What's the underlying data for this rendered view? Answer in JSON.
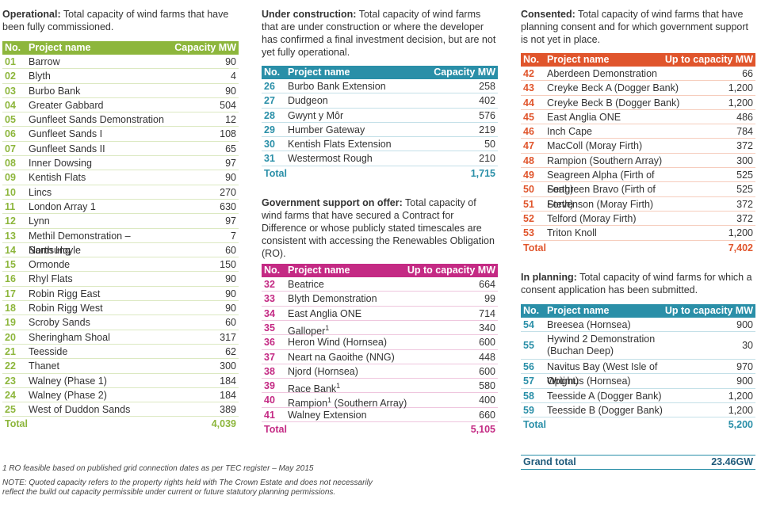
{
  "sections": {
    "operational": {
      "label": "Operational:",
      "description": "Total capacity of wind farms that have been fully commissioned.",
      "columns": [
        "No.",
        "Project name",
        "Capacity MW"
      ],
      "rows": [
        [
          "01",
          "Barrow",
          "90"
        ],
        [
          "02",
          "Blyth",
          "4"
        ],
        [
          "03",
          "Burbo Bank",
          "90"
        ],
        [
          "04",
          "Greater Gabbard",
          "504"
        ],
        [
          "05",
          "Gunfleet Sands Demonstration",
          "12"
        ],
        [
          "06",
          "Gunfleet Sands I",
          "108"
        ],
        [
          "07",
          "Gunfleet Sands II",
          "65"
        ],
        [
          "08",
          "Inner Dowsing",
          "97"
        ],
        [
          "09",
          "Kentish Flats",
          "90"
        ],
        [
          "10",
          "Lincs",
          "270"
        ],
        [
          "11",
          "London Array 1",
          "630"
        ],
        [
          "12",
          "Lynn",
          "97"
        ],
        [
          "13",
          "Methil Demonstration – Samsung",
          "7"
        ],
        [
          "14",
          "North Hoyle",
          "60"
        ],
        [
          "15",
          "Ormonde",
          "150"
        ],
        [
          "16",
          "Rhyl Flats",
          "90"
        ],
        [
          "17",
          "Robin Rigg East",
          "90"
        ],
        [
          "18",
          "Robin Rigg West",
          "90"
        ],
        [
          "19",
          "Scroby Sands",
          "60"
        ],
        [
          "20",
          "Sheringham Shoal",
          "317"
        ],
        [
          "21",
          "Teesside",
          "62"
        ],
        [
          "22",
          "Thanet",
          "300"
        ],
        [
          "23",
          "Walney (Phase 1)",
          "184"
        ],
        [
          "24",
          "Walney (Phase 2)",
          "184"
        ],
        [
          "25",
          "West of Duddon Sands",
          "389"
        ]
      ],
      "total": {
        "label": "Total",
        "value": "4,039"
      }
    },
    "under_construction": {
      "label": "Under construction:",
      "description": "Total capacity of wind farms that are under construction or where the developer has confirmed a final investment decision, but are not yet fully operational.",
      "columns": [
        "No.",
        "Project name",
        "Capacity MW"
      ],
      "rows": [
        [
          "26",
          "Burbo Bank Extension",
          "258"
        ],
        [
          "27",
          "Dudgeon",
          "402"
        ],
        [
          "28",
          "Gwynt y Môr",
          "576"
        ],
        [
          "29",
          "Humber Gateway",
          "219"
        ],
        [
          "30",
          "Kentish Flats Extension",
          "50"
        ],
        [
          "31",
          "Westermost Rough",
          "210"
        ]
      ],
      "total": {
        "label": "Total",
        "value": "1,715"
      }
    },
    "government_support": {
      "label": "Government support on offer:",
      "description": "Total capacity of wind farms that have secured a Contract for Difference or whose publicly stated timescales are consistent with accessing the Renewables Obligation (RO).",
      "columns": [
        "No.",
        "Project name",
        "Up to capacity MW"
      ],
      "rows": [
        [
          "32",
          "Beatrice",
          "664"
        ],
        [
          "33",
          "Blyth Demonstration",
          "99"
        ],
        [
          "34",
          "East Anglia ONE",
          "714"
        ],
        [
          "35",
          "Galloper",
          "340",
          "1",
          ""
        ],
        [
          "36",
          "Heron Wind (Hornsea)",
          "600"
        ],
        [
          "37",
          "Neart na Gaoithe (NNG)",
          "448"
        ],
        [
          "38",
          "Njord (Hornsea)",
          "600"
        ],
        [
          "39",
          "Race Bank",
          "580",
          "1",
          ""
        ],
        [
          "40",
          "Rampion",
          "400",
          "1",
          " (Southern Array)"
        ],
        [
          "41",
          "Walney Extension",
          "660"
        ]
      ],
      "total": {
        "label": "Total",
        "value": "5,105"
      }
    },
    "consented": {
      "label": "Consented:",
      "description": "Total capacity of wind farms that have planning consent and for which government support is not yet in place.",
      "columns": [
        "No.",
        "Project name",
        "Up to capacity MW"
      ],
      "rows": [
        [
          "42",
          "Aberdeen Demonstration",
          "66"
        ],
        [
          "43",
          "Creyke Beck A (Dogger Bank)",
          "1,200"
        ],
        [
          "44",
          "Creyke Beck B (Dogger Bank)",
          "1,200"
        ],
        [
          "45",
          "East Anglia ONE",
          "486"
        ],
        [
          "46",
          "Inch Cape",
          "784"
        ],
        [
          "47",
          "MacColl (Moray Firth)",
          "372"
        ],
        [
          "48",
          "Rampion (Southern Array)",
          "300"
        ],
        [
          "49",
          "Seagreen Alpha (Firth of Forth)",
          "525"
        ],
        [
          "50",
          "Seagreen Bravo (Firth of Forth)",
          "525"
        ],
        [
          "51",
          "Stevenson (Moray Firth)",
          "372"
        ],
        [
          "52",
          "Telford (Moray Firth)",
          "372"
        ],
        [
          "53",
          "Triton Knoll",
          "1,200"
        ]
      ],
      "total": {
        "label": "Total",
        "value": "7,402"
      }
    },
    "in_planning": {
      "label": "In planning:",
      "description": "Total capacity of wind farms for which a consent application has been submitted.",
      "columns": [
        "No.",
        "Project name",
        "Up to capacity MW"
      ],
      "rows": [
        [
          "54",
          "Breesea (Hornsea)",
          "900"
        ],
        [
          "55",
          "Hywind 2 Demonstration (Buchan Deep)",
          "30"
        ],
        [
          "56",
          "Navitus Bay (West Isle of Wright)",
          "970"
        ],
        [
          "57",
          "Optimus (Hornsea)",
          "900"
        ],
        [
          "58",
          "Teesside A (Dogger Bank)",
          "1,200"
        ],
        [
          "59",
          "Teesside B (Dogger Bank)",
          "1,200"
        ]
      ],
      "total": {
        "label": "Total",
        "value": "5,200"
      }
    }
  },
  "grand_total": {
    "label": "Grand total",
    "value": "23.46GW"
  },
  "footnotes": {
    "footnote": "1  RO feasible based on published grid connection dates as per TEC register – May 2015",
    "note": "NOTE: Quoted capacity refers to the property rights held with The Crown Estate and does not necessarily reflect the build out capacity permissible under current or future statutory planning permissions."
  }
}
